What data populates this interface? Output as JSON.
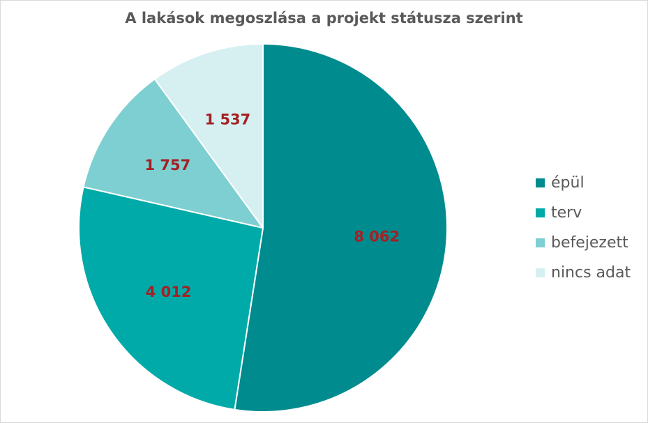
{
  "chart_data": {
    "type": "pie",
    "title": "A lakások megoszlása a projekt státusza szerint",
    "categories": [
      "épül",
      "terv",
      "befejezett",
      "nincs adat"
    ],
    "values": [
      8062,
      4012,
      1757,
      1537
    ],
    "value_labels": [
      "8 062",
      "4 012",
      "1 757",
      "1 537"
    ],
    "colors": [
      "#008b8f",
      "#00aaa8",
      "#7ecfd2",
      "#d6f0f2"
    ],
    "label_color": "#a52023",
    "start_angle": "12 o'clock",
    "direction": "clockwise",
    "legend_position": "right"
  }
}
